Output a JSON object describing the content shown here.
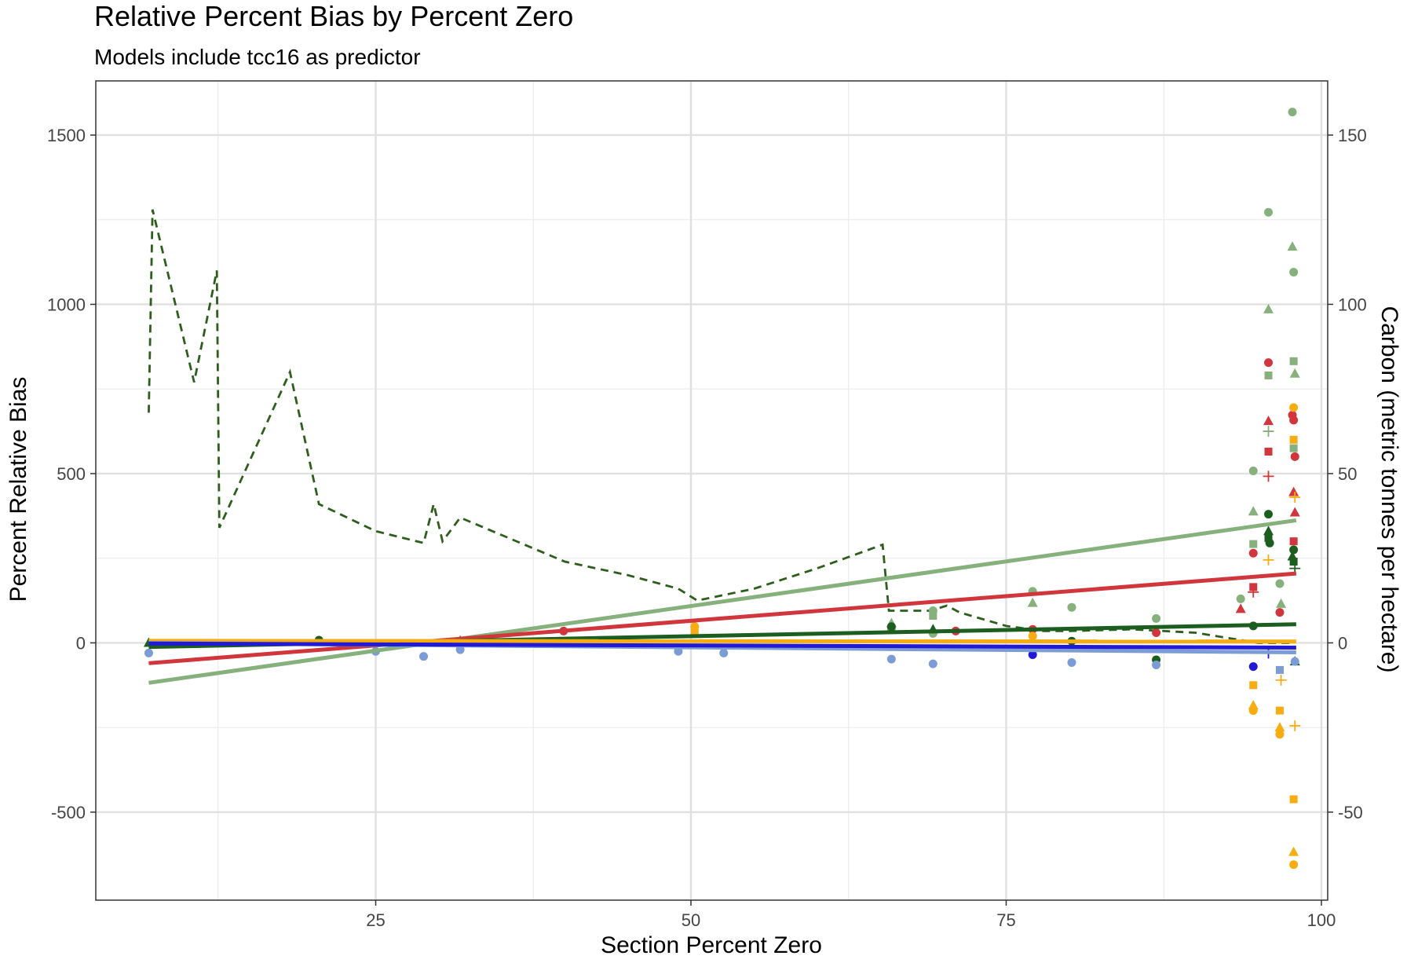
{
  "chart_data": {
    "type": "scatter",
    "title": "Relative Percent Bias by Percent Zero",
    "subtitle": "Models include tcc16 as predictor",
    "xlabel": "Section Percent Zero",
    "ylabel": "Percent Relative Bias",
    "y2label": "Carbon (metric tonnes per hectare)",
    "xlim": [
      2.8,
      100.5
    ],
    "ylim": [
      -760,
      1660
    ],
    "y2lim": [
      -76,
      166
    ],
    "x_ticks": [
      25,
      50,
      75,
      100
    ],
    "y_ticks": [
      -500,
      0,
      500,
      1000,
      1500
    ],
    "y2_ticks": [
      -50,
      0,
      50,
      100,
      150
    ],
    "grid": true,
    "legend": "none",
    "colors": {
      "red": "#d1363c",
      "light_green": "#86b07c",
      "dark_green": "#1c5e20",
      "orange": "#f7ad12",
      "blue": "#2219d6",
      "light_blue": "#7c9cd6",
      "dashed": "#2d5e1c"
    },
    "trend_lines": [
      {
        "color": "light_green",
        "x": [
          7,
          98
        ],
        "y": [
          -118,
          362
        ]
      },
      {
        "color": "red",
        "x": [
          7,
          98
        ],
        "y": [
          -60,
          205
        ]
      },
      {
        "color": "dark_green",
        "x": [
          7,
          98
        ],
        "y": [
          -12,
          55
        ]
      },
      {
        "color": "orange",
        "x": [
          7,
          98
        ],
        "y": [
          6,
          4
        ]
      },
      {
        "color": "light_blue",
        "x": [
          7,
          98
        ],
        "y": [
          0,
          -28
        ]
      },
      {
        "color": "blue",
        "x": [
          7,
          98
        ],
        "y": [
          -2,
          -14
        ]
      }
    ],
    "carbon_line": {
      "color": "dashed",
      "axis": "secondary",
      "x": [
        7,
        7.3,
        10.6,
        12.4,
        12.6,
        18.2,
        20.5,
        25,
        28.8,
        29.6,
        30.3,
        31.7,
        40,
        45,
        49,
        50.5,
        55,
        60,
        65.2,
        65.7,
        69,
        70.3,
        71.3,
        75,
        78,
        80,
        85,
        90,
        95,
        97.7
      ],
      "y": [
        68,
        128,
        77,
        110,
        34,
        80,
        41,
        33,
        29.5,
        41,
        30,
        37,
        24,
        20,
        16,
        12.5,
        16,
        22,
        29,
        9.5,
        9.5,
        11,
        9,
        5,
        3.5,
        3.5,
        4,
        3,
        0,
        0
      ]
    },
    "points": [
      {
        "color": "light_green",
        "shape": "circle",
        "x": 97.7,
        "y": 1568
      },
      {
        "color": "light_green",
        "shape": "circle",
        "x": 95.8,
        "y": 1272
      },
      {
        "color": "light_green",
        "shape": "triangle",
        "x": 97.7,
        "y": 1170
      },
      {
        "color": "light_green",
        "shape": "circle",
        "x": 97.8,
        "y": 1095
      },
      {
        "color": "light_green",
        "shape": "triangle",
        "x": 95.8,
        "y": 985
      },
      {
        "color": "light_green",
        "shape": "square",
        "x": 97.8,
        "y": 832
      },
      {
        "color": "light_green",
        "shape": "triangle",
        "x": 97.9,
        "y": 795
      },
      {
        "color": "light_green",
        "shape": "square",
        "x": 95.8,
        "y": 790
      },
      {
        "color": "light_green",
        "shape": "plus",
        "x": 95.8,
        "y": 625
      },
      {
        "color": "light_green",
        "shape": "square",
        "x": 97.8,
        "y": 575
      },
      {
        "color": "light_green",
        "shape": "circle",
        "x": 94.6,
        "y": 508
      },
      {
        "color": "light_green",
        "shape": "triangle",
        "x": 94.6,
        "y": 388
      },
      {
        "color": "light_green",
        "shape": "square",
        "x": 94.6,
        "y": 292
      },
      {
        "color": "light_green",
        "shape": "circle",
        "x": 96.7,
        "y": 175
      },
      {
        "color": "light_green",
        "shape": "circle",
        "x": 93.6,
        "y": 130
      },
      {
        "color": "light_green",
        "shape": "triangle",
        "x": 96.8,
        "y": 115
      },
      {
        "color": "light_green",
        "shape": "circle",
        "x": 77.1,
        "y": 152
      },
      {
        "color": "light_green",
        "shape": "triangle",
        "x": 77.1,
        "y": 118
      },
      {
        "color": "light_green",
        "shape": "circle",
        "x": 80.2,
        "y": 105
      },
      {
        "color": "light_green",
        "shape": "circle",
        "x": 69.2,
        "y": 95
      },
      {
        "color": "light_green",
        "shape": "square",
        "x": 69.2,
        "y": 80
      },
      {
        "color": "light_green",
        "shape": "circle",
        "x": 86.9,
        "y": 72
      },
      {
        "color": "light_green",
        "shape": "circle",
        "x": 65.9,
        "y": 40
      },
      {
        "color": "light_green",
        "shape": "triangle",
        "x": 65.9,
        "y": 58
      },
      {
        "color": "light_green",
        "shape": "circle",
        "x": 69.2,
        "y": 28
      },
      {
        "color": "red",
        "shape": "circle",
        "x": 95.8,
        "y": 828
      },
      {
        "color": "red",
        "shape": "circle",
        "x": 97.7,
        "y": 673
      },
      {
        "color": "red",
        "shape": "circle",
        "x": 97.8,
        "y": 658
      },
      {
        "color": "red",
        "shape": "triangle",
        "x": 95.8,
        "y": 655
      },
      {
        "color": "red",
        "shape": "square",
        "x": 95.8,
        "y": 565
      },
      {
        "color": "red",
        "shape": "circle",
        "x": 97.9,
        "y": 550
      },
      {
        "color": "red",
        "shape": "plus",
        "x": 95.8,
        "y": 492
      },
      {
        "color": "red",
        "shape": "triangle",
        "x": 97.8,
        "y": 445
      },
      {
        "color": "red",
        "shape": "triangle",
        "x": 97.9,
        "y": 385
      },
      {
        "color": "red",
        "shape": "square",
        "x": 97.8,
        "y": 300
      },
      {
        "color": "red",
        "shape": "circle",
        "x": 94.6,
        "y": 265
      },
      {
        "color": "red",
        "shape": "plus",
        "x": 94.6,
        "y": 150
      },
      {
        "color": "red",
        "shape": "square",
        "x": 94.6,
        "y": 165
      },
      {
        "color": "red",
        "shape": "triangle",
        "x": 93.6,
        "y": 100
      },
      {
        "color": "red",
        "shape": "circle",
        "x": 96.7,
        "y": 90
      },
      {
        "color": "red",
        "shape": "circle",
        "x": 39.9,
        "y": 35
      },
      {
        "color": "red",
        "shape": "circle",
        "x": 71.0,
        "y": 35
      },
      {
        "color": "red",
        "shape": "circle",
        "x": 86.9,
        "y": 30
      },
      {
        "color": "red",
        "shape": "circle",
        "x": 77.1,
        "y": 40
      },
      {
        "color": "dark_green",
        "shape": "circle",
        "x": 95.8,
        "y": 380
      },
      {
        "color": "dark_green",
        "shape": "triangle",
        "x": 95.8,
        "y": 330
      },
      {
        "color": "dark_green",
        "shape": "square",
        "x": 95.8,
        "y": 310
      },
      {
        "color": "dark_green",
        "shape": "circle",
        "x": 95.9,
        "y": 295
      },
      {
        "color": "dark_green",
        "shape": "circle",
        "x": 97.8,
        "y": 275
      },
      {
        "color": "dark_green",
        "shape": "triangle",
        "x": 97.7,
        "y": 255
      },
      {
        "color": "dark_green",
        "shape": "square",
        "x": 97.8,
        "y": 240
      },
      {
        "color": "dark_green",
        "shape": "plus",
        "x": 97.9,
        "y": 220
      },
      {
        "color": "dark_green",
        "shape": "circle",
        "x": 94.6,
        "y": 50
      },
      {
        "color": "dark_green",
        "shape": "circle",
        "x": 65.9,
        "y": 48
      },
      {
        "color": "dark_green",
        "shape": "triangle",
        "x": 69.2,
        "y": 40
      },
      {
        "color": "dark_green",
        "shape": "circle",
        "x": 80.2,
        "y": 5
      },
      {
        "color": "dark_green",
        "shape": "triangle",
        "x": 7.0,
        "y": 0
      },
      {
        "color": "dark_green",
        "shape": "circle",
        "x": 20.5,
        "y": 8
      },
      {
        "color": "dark_green",
        "shape": "triangle",
        "x": 31.7,
        "y": 6
      },
      {
        "color": "dark_green",
        "shape": "circle",
        "x": 86.9,
        "y": -50
      },
      {
        "color": "dark_green",
        "shape": "triangle",
        "x": 97.9,
        "y": -55
      },
      {
        "color": "orange",
        "shape": "circle",
        "x": 97.8,
        "y": 695
      },
      {
        "color": "orange",
        "shape": "square",
        "x": 97.8,
        "y": 600
      },
      {
        "color": "orange",
        "shape": "plus",
        "x": 97.9,
        "y": 430
      },
      {
        "color": "orange",
        "shape": "plus",
        "x": 95.8,
        "y": 245
      },
      {
        "color": "orange",
        "shape": "circle",
        "x": 50.3,
        "y": 48
      },
      {
        "color": "orange",
        "shape": "square",
        "x": 50.3,
        "y": 30
      },
      {
        "color": "orange",
        "shape": "circle",
        "x": 77.1,
        "y": 20
      },
      {
        "color": "orange",
        "shape": "square",
        "x": 94.6,
        "y": -125
      },
      {
        "color": "orange",
        "shape": "triangle",
        "x": 94.6,
        "y": -185
      },
      {
        "color": "orange",
        "shape": "circle",
        "x": 94.6,
        "y": -200
      },
      {
        "color": "orange",
        "shape": "square",
        "x": 96.7,
        "y": -200
      },
      {
        "color": "orange",
        "shape": "plus",
        "x": 96.8,
        "y": -110
      },
      {
        "color": "orange",
        "shape": "triangle",
        "x": 96.7,
        "y": -250
      },
      {
        "color": "orange",
        "shape": "circle",
        "x": 96.7,
        "y": -270
      },
      {
        "color": "orange",
        "shape": "plus",
        "x": 97.9,
        "y": -245
      },
      {
        "color": "orange",
        "shape": "square",
        "x": 97.8,
        "y": -462
      },
      {
        "color": "orange",
        "shape": "triangle",
        "x": 97.8,
        "y": -618
      },
      {
        "color": "orange",
        "shape": "circle",
        "x": 97.8,
        "y": -655
      },
      {
        "color": "light_blue",
        "shape": "circle",
        "x": 7.0,
        "y": -30
      },
      {
        "color": "light_blue",
        "shape": "circle",
        "x": 25.0,
        "y": -25
      },
      {
        "color": "light_blue",
        "shape": "circle",
        "x": 28.8,
        "y": -40
      },
      {
        "color": "light_blue",
        "shape": "circle",
        "x": 31.7,
        "y": -20
      },
      {
        "color": "light_blue",
        "shape": "circle",
        "x": 49.0,
        "y": -25
      },
      {
        "color": "light_blue",
        "shape": "circle",
        "x": 52.6,
        "y": -30
      },
      {
        "color": "light_blue",
        "shape": "circle",
        "x": 65.9,
        "y": -48
      },
      {
        "color": "light_blue",
        "shape": "circle",
        "x": 69.2,
        "y": -62
      },
      {
        "color": "light_blue",
        "shape": "circle",
        "x": 80.2,
        "y": -58
      },
      {
        "color": "light_blue",
        "shape": "circle",
        "x": 86.9,
        "y": -65
      },
      {
        "color": "light_blue",
        "shape": "square",
        "x": 96.7,
        "y": -80
      },
      {
        "color": "light_blue",
        "shape": "circle",
        "x": 97.9,
        "y": -55
      },
      {
        "color": "blue",
        "shape": "circle",
        "x": 94.6,
        "y": -70
      },
      {
        "color": "blue",
        "shape": "circle",
        "x": 77.1,
        "y": -35
      },
      {
        "color": "blue",
        "shape": "plus",
        "x": 95.8,
        "y": -30
      }
    ]
  }
}
